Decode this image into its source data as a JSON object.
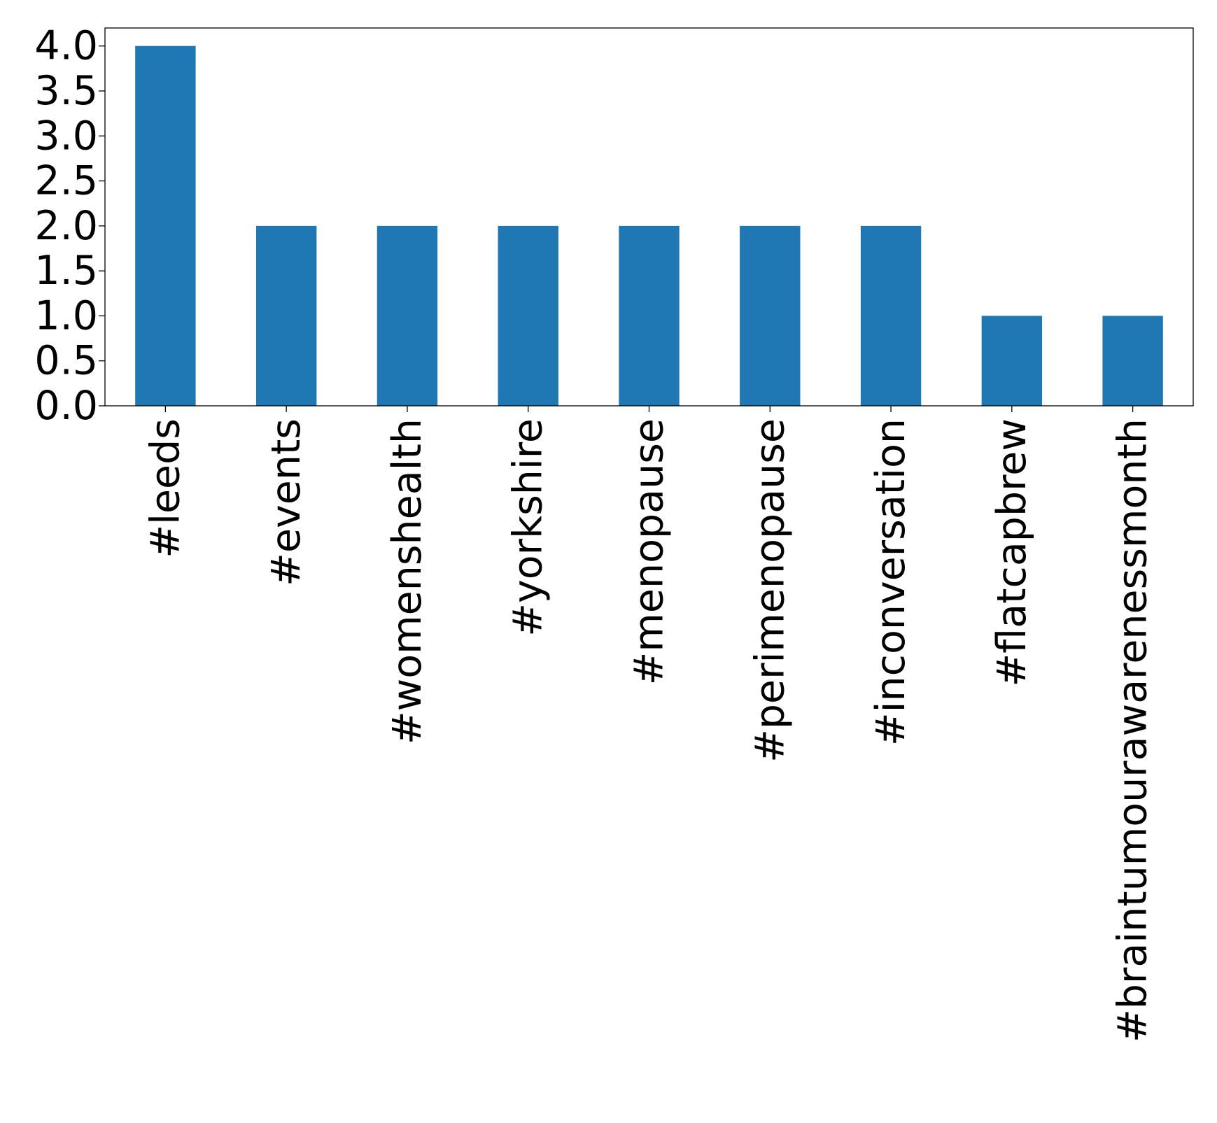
{
  "chart_data": {
    "type": "bar",
    "title": "",
    "xlabel": "",
    "ylabel": "",
    "categories": [
      "#leeds",
      "#events",
      "#womenshealth",
      "#yorkshire",
      "#menopause",
      "#perimenopause",
      "#inconversation",
      "#flatcapbrew",
      "#braintumourawarenessmonth"
    ],
    "values": [
      4,
      2,
      2,
      2,
      2,
      2,
      2,
      1,
      1
    ],
    "ylim": [
      0,
      4.2
    ],
    "yticks": [
      "0.0",
      "0.5",
      "1.0",
      "1.5",
      "2.0",
      "2.5",
      "3.0",
      "3.5",
      "4.0"
    ],
    "grid": false,
    "legend": "none",
    "bar_color": "#1f77b4"
  }
}
